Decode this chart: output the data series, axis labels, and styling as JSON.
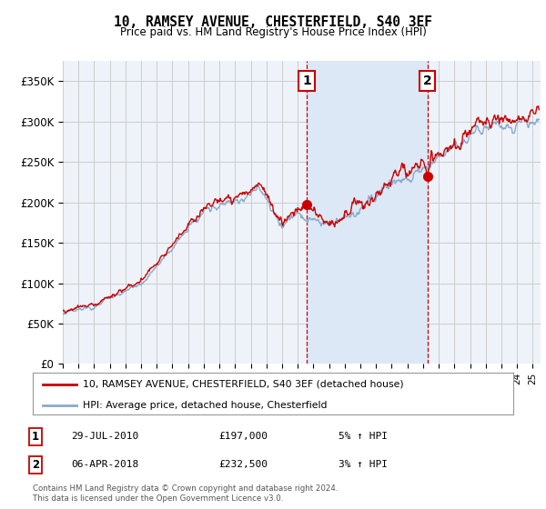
{
  "title": "10, RAMSEY AVENUE, CHESTERFIELD, S40 3EF",
  "subtitle": "Price paid vs. HM Land Registry's House Price Index (HPI)",
  "ylabel_ticks": [
    "£0",
    "£50K",
    "£100K",
    "£150K",
    "£200K",
    "£250K",
    "£300K",
    "£350K"
  ],
  "ylim": [
    0,
    375000
  ],
  "xlim_start": 1995,
  "xlim_end": 2025.5,
  "red_line_color": "#cc0000",
  "blue_line_color": "#88aacc",
  "shade_color": "#dce8f5",
  "grid_color": "#cccccc",
  "bg_color": "#eef3fa",
  "sale1_x": 2010.57,
  "sale1_y": 197000,
  "sale2_x": 2018.27,
  "sale2_y": 232500,
  "legend_line1": "10, RAMSEY AVENUE, CHESTERFIELD, S40 3EF (detached house)",
  "legend_line2": "HPI: Average price, detached house, Chesterfield",
  "note1_num": "1",
  "note1_date": "29-JUL-2010",
  "note1_price": "£197,000",
  "note1_pct": "5% ↑ HPI",
  "note2_num": "2",
  "note2_date": "06-APR-2018",
  "note2_price": "£232,500",
  "note2_pct": "3% ↑ HPI",
  "footer": "Contains HM Land Registry data © Crown copyright and database right 2024.\nThis data is licensed under the Open Government Licence v3.0."
}
